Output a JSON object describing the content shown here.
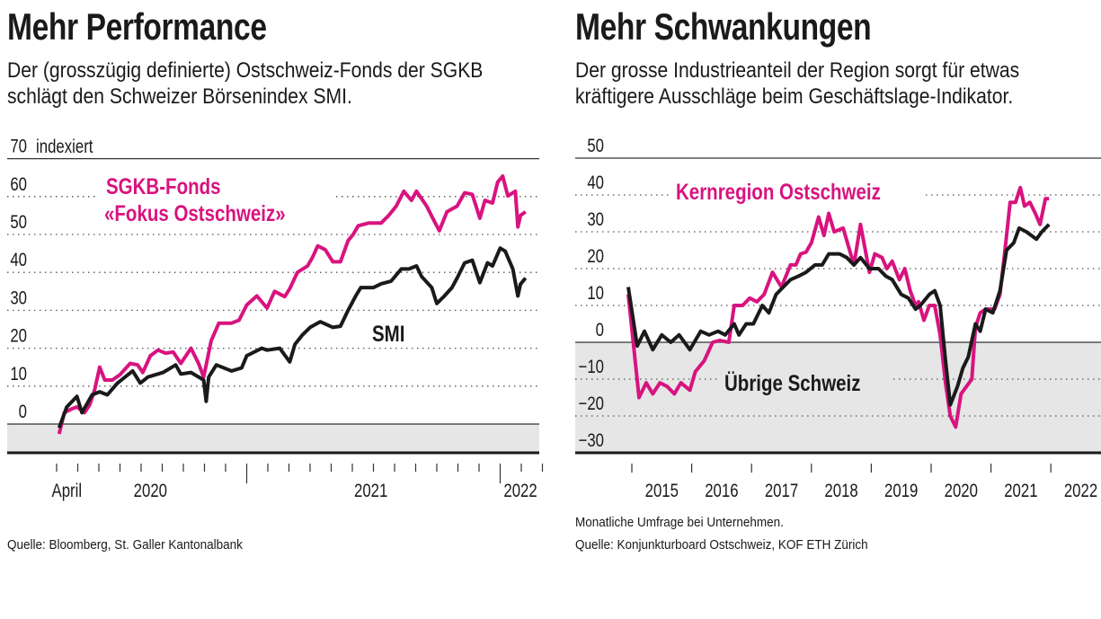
{
  "left": {
    "title": "Mehr Performance",
    "subtitle": [
      "Der (grosszügig definierte) Ostschweiz-Fonds der SGKB",
      "schlägt den Schweizer Börsenindex SMI."
    ],
    "source": "Quelle: Bloomberg, St. Galler Kantonalbank"
  },
  "right": {
    "title": "Mehr Schwankungen",
    "subtitle": [
      "Der grosse Industrieanteil der Region sorgt für etwas",
      "kräftigere Ausschläge beim Geschäftslage-Indikator."
    ],
    "note": "Monatliche Umfrage bei Unternehmen.",
    "source": "Quelle: Konjunkturboard Ostschweiz, KOF ETH Zürich"
  },
  "colors": {
    "pink": "#d8137f",
    "black": "#1a1a1a",
    "band": "#e6e6e6",
    "grid": "#555555"
  },
  "chart_data": [
    {
      "type": "line",
      "title": "Mehr Performance",
      "ylabel": "indexiert",
      "ylim": [
        -7.5,
        70
      ],
      "yticks": [
        0,
        10,
        20,
        30,
        40,
        50,
        60,
        70
      ],
      "xlim": [
        2020.25,
        2022.17
      ],
      "xtick_months_start": 2020.25,
      "xtick_count": 24,
      "xtick_major": [
        2021.0,
        2022.0
      ],
      "xlabels": [
        {
          "label": "April",
          "x": 2020.29
        },
        {
          "label": "2020",
          "x": 2020.62
        },
        {
          "label": "2021",
          "x": 2021.49
        },
        {
          "label": "2022",
          "x": 2022.08
        }
      ],
      "grid": "dotted",
      "series": [
        {
          "name": "SGKB-Fonds «Fokus Ostschweiz»",
          "label_lines": [
            "SGKB-Fonds",
            "«Fokus Ostschweiz»"
          ],
          "color": "#d8137f",
          "x": [
            2020.26,
            2020.28,
            2020.31,
            2020.33,
            2020.36,
            2020.38,
            2020.4,
            2020.42,
            2020.44,
            2020.47,
            2020.5,
            2020.54,
            2020.57,
            2020.59,
            2020.62,
            2020.65,
            2020.68,
            2020.71,
            2020.74,
            2020.78,
            2020.81,
            2020.83,
            2020.86,
            2020.89,
            2020.94,
            2020.97,
            2021.0,
            2021.04,
            2021.08,
            2021.11,
            2021.15,
            2021.17,
            2021.2,
            2021.24,
            2021.26,
            2021.28,
            2021.31,
            2021.34,
            2021.37,
            2021.4,
            2021.42,
            2021.44,
            2021.48,
            2021.53,
            2021.56,
            2021.59,
            2021.62,
            2021.65,
            2021.67,
            2021.71,
            2021.74,
            2021.76,
            2021.79,
            2021.83,
            2021.86,
            2021.89,
            2021.92,
            2021.94,
            2021.97,
            2021.99,
            2022.01,
            2022.03,
            2022.06,
            2022.07,
            2022.08,
            2022.1
          ],
          "y": [
            -2.6,
            3,
            4,
            4.5,
            3,
            5,
            9,
            15,
            11.6,
            11.6,
            13,
            16,
            15.6,
            13.6,
            18,
            19.5,
            18.7,
            19,
            16,
            20,
            16,
            12.4,
            22,
            26.6,
            26.6,
            27.4,
            31.4,
            33.8,
            30.6,
            35,
            33.6,
            35.7,
            40,
            41.7,
            44,
            47,
            46,
            42.8,
            42.8,
            48.4,
            50,
            52.3,
            53,
            53,
            55,
            57.5,
            61.4,
            59,
            61.4,
            57.5,
            53.5,
            51,
            56,
            57.5,
            61,
            60.6,
            54.3,
            59,
            58.3,
            63.8,
            65.4,
            60.2,
            61.4,
            52,
            55,
            56
          ]
        },
        {
          "name": "SMI",
          "label_lines": [
            "SMI"
          ],
          "color": "#1a1a1a",
          "x": [
            2020.26,
            2020.29,
            2020.33,
            2020.35,
            2020.39,
            2020.42,
            2020.45,
            2020.49,
            2020.55,
            2020.58,
            2020.61,
            2020.67,
            2020.72,
            2020.74,
            2020.78,
            2020.83,
            2020.84,
            2020.85,
            2020.88,
            2020.94,
            2020.98,
            2021.0,
            2021.06,
            2021.08,
            2021.13,
            2021.17,
            2021.19,
            2021.22,
            2021.25,
            2021.29,
            2021.34,
            2021.37,
            2021.4,
            2021.43,
            2021.45,
            2021.5,
            2021.53,
            2021.57,
            2021.61,
            2021.64,
            2021.67,
            2021.69,
            2021.73,
            2021.75,
            2021.78,
            2021.81,
            2021.83,
            2021.86,
            2021.89,
            2021.92,
            2021.95,
            2021.97,
            2022.0,
            2022.02,
            2022.05,
            2022.07,
            2022.08,
            2022.1
          ],
          "y": [
            -1,
            4.5,
            7.3,
            3,
            7.7,
            8.5,
            7.7,
            10.8,
            14,
            10.8,
            12.4,
            13.6,
            15.6,
            13.2,
            13.6,
            11.6,
            6,
            12.4,
            15.6,
            14,
            14.8,
            18,
            20,
            19.5,
            20,
            16.4,
            21,
            23.5,
            25.5,
            27,
            25.5,
            25.8,
            30,
            33.8,
            36,
            36,
            37,
            37.7,
            40.9,
            40.9,
            41.7,
            38.9,
            36,
            31.8,
            33.8,
            36,
            38.5,
            42.5,
            43.2,
            37.3,
            42.5,
            41.7,
            46.4,
            45.6,
            40.9,
            33.8,
            36.9,
            38.5
          ]
        }
      ]
    },
    {
      "type": "line",
      "title": "Mehr Schwankungen",
      "ylabel": "",
      "ylim": [
        -30,
        50
      ],
      "yticks": [
        -30,
        -20,
        -10,
        0,
        10,
        20,
        30,
        40,
        50
      ],
      "xlim": [
        2014.9,
        2023.3
      ],
      "xticks": [
        2015,
        2016,
        2017,
        2018,
        2019,
        2020,
        2021,
        2022
      ],
      "xlabels": [
        {
          "label": "2015",
          "x": 2015.5
        },
        {
          "label": "2016",
          "x": 2016.5
        },
        {
          "label": "2017",
          "x": 2017.5
        },
        {
          "label": "2018",
          "x": 2018.5
        },
        {
          "label": "2019",
          "x": 2019.5
        },
        {
          "label": "2020",
          "x": 2020.5
        },
        {
          "label": "2021",
          "x": 2021.5
        },
        {
          "label": "2022",
          "x": 2022.5
        }
      ],
      "grid": "dotted",
      "series": [
        {
          "name": "Kernregion Ostschweiz",
          "label_lines": [
            "Kernregion Ostschweiz"
          ],
          "color": "#d8137f",
          "x": [
            2014.94,
            2015.12,
            2015.24,
            2015.35,
            2015.47,
            2015.59,
            2015.71,
            2015.82,
            2015.97,
            2016.06,
            2016.21,
            2016.35,
            2016.47,
            2016.62,
            2016.71,
            2016.85,
            2016.97,
            2017.09,
            2017.21,
            2017.35,
            2017.5,
            2017.65,
            2017.74,
            2017.82,
            2017.91,
            2018.0,
            2018.12,
            2018.21,
            2018.29,
            2018.38,
            2018.53,
            2018.71,
            2018.82,
            2018.97,
            2019.06,
            2019.18,
            2019.26,
            2019.35,
            2019.47,
            2019.56,
            2019.65,
            2019.74,
            2019.79,
            2019.88,
            2019.97,
            2020.06,
            2020.15,
            2020.24,
            2020.32,
            2020.41,
            2020.5,
            2020.59,
            2020.68,
            2020.74,
            2020.82,
            2020.91,
            2021.06,
            2021.15,
            2021.24,
            2021.32,
            2021.41,
            2021.49,
            2021.56,
            2021.65,
            2021.74,
            2021.82,
            2021.91,
            2021.97
          ],
          "y": [
            13,
            -15,
            -11,
            -14,
            -11,
            -12,
            -14,
            -11,
            -13,
            -8,
            -5,
            0,
            0.5,
            0,
            10,
            10,
            12,
            11,
            13,
            19,
            15,
            21,
            21,
            24,
            24.5,
            27,
            34,
            29,
            35,
            30,
            31,
            21,
            32,
            19,
            24,
            23,
            20,
            22,
            17,
            20,
            14,
            10,
            11,
            6,
            10,
            10,
            2,
            -11,
            -20,
            -23,
            -14,
            -12,
            -10,
            4,
            8,
            9,
            9,
            13,
            26,
            38,
            38,
            42,
            37,
            38,
            35,
            32,
            39,
            39
          ]
        },
        {
          "name": "Übrige Schweiz",
          "label_lines": [
            "Übrige Schweiz"
          ],
          "color": "#1a1a1a",
          "x": [
            2014.94,
            2015.09,
            2015.21,
            2015.35,
            2015.5,
            2015.65,
            2015.79,
            2015.97,
            2016.15,
            2016.29,
            2016.44,
            2016.56,
            2016.71,
            2016.79,
            2016.91,
            2017.03,
            2017.18,
            2017.29,
            2017.41,
            2017.53,
            2017.65,
            2017.79,
            2017.91,
            2018.06,
            2018.18,
            2018.29,
            2018.47,
            2018.59,
            2018.71,
            2018.82,
            2018.97,
            2019.12,
            2019.24,
            2019.35,
            2019.5,
            2019.62,
            2019.74,
            2019.82,
            2019.97,
            2020.06,
            2020.15,
            2020.24,
            2020.32,
            2020.44,
            2020.53,
            2020.62,
            2020.74,
            2020.82,
            2020.91,
            2021.03,
            2021.15,
            2021.26,
            2021.38,
            2021.47,
            2021.59,
            2021.76,
            2021.85,
            2021.97
          ],
          "y": [
            15,
            -1,
            3,
            -2,
            2,
            0,
            2,
            -2,
            3,
            2,
            3,
            2,
            5,
            2,
            5,
            5,
            10,
            8,
            13,
            15,
            17,
            18,
            19,
            21,
            21,
            24,
            24,
            23,
            21,
            23,
            20,
            20,
            18,
            17,
            13,
            12,
            9,
            10,
            13,
            14,
            10,
            -5,
            -17,
            -12,
            -7,
            -4,
            5,
            3,
            9,
            8,
            14,
            25,
            27,
            31,
            30,
            28,
            30,
            32
          ]
        }
      ]
    }
  ]
}
